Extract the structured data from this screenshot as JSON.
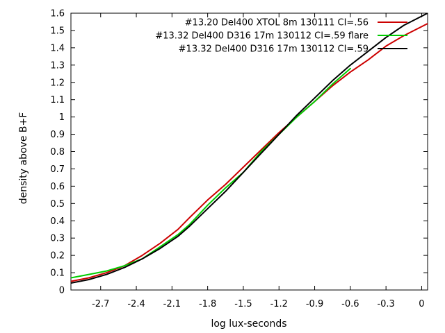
{
  "chart_data": {
    "type": "line",
    "title": "",
    "xlabel": "log lux-seconds",
    "ylabel": "density above B+F",
    "xlim": [
      -2.95,
      0.05
    ],
    "ylim": [
      0,
      1.6
    ],
    "grid": false,
    "legend_position": "top-right",
    "x_ticks": [
      {
        "value": -2.7,
        "label": "-2.7"
      },
      {
        "value": -2.4,
        "label": "-2.4"
      },
      {
        "value": -2.1,
        "label": "-2.1"
      },
      {
        "value": -1.8,
        "label": "-1.8"
      },
      {
        "value": -1.5,
        "label": "-1.5"
      },
      {
        "value": -1.2,
        "label": "-1.2"
      },
      {
        "value": -0.9,
        "label": "-0.9"
      },
      {
        "value": -0.6,
        "label": "-0.6"
      },
      {
        "value": -0.3,
        "label": "-0.3"
      },
      {
        "value": 0.0,
        "label": "0"
      }
    ],
    "y_ticks": [
      {
        "value": 0,
        "label": "0"
      },
      {
        "value": 0.1,
        "label": "0.1"
      },
      {
        "value": 0.2,
        "label": "0.2"
      },
      {
        "value": 0.3,
        "label": "0.3"
      },
      {
        "value": 0.4,
        "label": "0.4"
      },
      {
        "value": 0.5,
        "label": "0.5"
      },
      {
        "value": 0.6,
        "label": "0.6"
      },
      {
        "value": 0.7,
        "label": "0.7"
      },
      {
        "value": 0.8,
        "label": "0.8"
      },
      {
        "value": 0.9,
        "label": "0.9"
      },
      {
        "value": 1.0,
        "label": "1"
      },
      {
        "value": 1.1,
        "label": "1.1"
      },
      {
        "value": 1.2,
        "label": "1.2"
      },
      {
        "value": 1.3,
        "label": "1.3"
      },
      {
        "value": 1.4,
        "label": "1.4"
      },
      {
        "value": 1.5,
        "label": "1.5"
      },
      {
        "value": 1.6,
        "label": "1.6"
      }
    ],
    "series": [
      {
        "name": "#13.20 Del400 XTOL 8m 130111 CI=.56",
        "color": "#cc0000",
        "x": [
          -2.95,
          -2.8,
          -2.65,
          -2.5,
          -2.35,
          -2.2,
          -2.05,
          -1.95,
          -1.8,
          -1.65,
          -1.5,
          -1.35,
          -1.2,
          -1.05,
          -0.9,
          -0.75,
          -0.6,
          -0.45,
          -0.3,
          -0.15,
          0.05
        ],
        "y": [
          0.05,
          0.07,
          0.1,
          0.14,
          0.2,
          0.27,
          0.35,
          0.42,
          0.52,
          0.61,
          0.71,
          0.81,
          0.91,
          1.0,
          1.09,
          1.18,
          1.26,
          1.33,
          1.41,
          1.47,
          1.54
        ]
      },
      {
        "name": "#13.32 Del400 D316 17m 130112 CI=.59 flare",
        "color": "#00cc00",
        "x": [
          -2.95,
          -2.8,
          -2.65,
          -2.5,
          -2.35,
          -2.2,
          -2.05,
          -1.95,
          -1.8,
          -1.65,
          -1.5,
          -1.35,
          -1.2,
          -1.05,
          -0.9,
          -0.75,
          -0.6
        ],
        "y": [
          0.07,
          0.09,
          0.11,
          0.14,
          0.18,
          0.25,
          0.32,
          0.38,
          0.49,
          0.59,
          0.68,
          0.8,
          0.9,
          1.0,
          1.09,
          1.19,
          1.28
        ]
      },
      {
        "name": "#13.32 Del400 D316 17m 130112 CI=.59",
        "color": "#000000",
        "x": [
          -2.95,
          -2.8,
          -2.65,
          -2.5,
          -2.35,
          -2.2,
          -2.05,
          -1.95,
          -1.8,
          -1.65,
          -1.5,
          -1.35,
          -1.2,
          -1.05,
          -0.9,
          -0.75,
          -0.6,
          -0.45,
          -0.3,
          -0.15,
          0.05
        ],
        "y": [
          0.04,
          0.06,
          0.09,
          0.13,
          0.18,
          0.24,
          0.31,
          0.37,
          0.47,
          0.57,
          0.68,
          0.79,
          0.9,
          1.01,
          1.11,
          1.21,
          1.3,
          1.38,
          1.46,
          1.53,
          1.6
        ]
      }
    ]
  }
}
